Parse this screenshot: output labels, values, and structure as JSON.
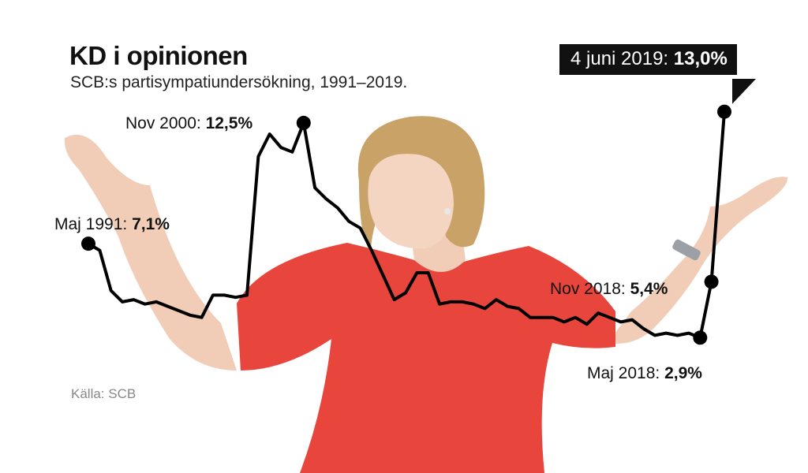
{
  "header": {
    "title": "KD i opinionen",
    "subtitle": "SCB:s partisympatiundersökning, 1991–2019."
  },
  "source": "Källa: SCB",
  "colors": {
    "line": "#000000",
    "callout_bg": "#111111",
    "dress": "#e8453c",
    "skin": "#f1cdb8",
    "hair": "#c9a268"
  },
  "photo": {
    "icon": "woman-red-dress-photo"
  },
  "chart_data": {
    "type": "line",
    "title": "KD i opinionen",
    "subtitle": "SCB:s partisympatiundersökning, 1991–2019.",
    "xlabel": "",
    "ylabel": "",
    "grid": false,
    "legend": "none",
    "xlim": [
      1991.35,
      2019.42
    ],
    "ylim": [
      1.5,
      15.0
    ],
    "series": [
      {
        "x": [
          1991.35,
          1991.85,
          1992.35,
          1992.85,
          1993.35,
          1993.85,
          1994.35,
          1994.85,
          1995.35,
          1995.85,
          1996.35,
          1996.85,
          1997.35,
          1997.85,
          1998.35,
          1998.85,
          1999.35,
          1999.85,
          2000.35,
          2000.85,
          2001.35,
          2001.85,
          2002.35,
          2002.85,
          2003.35,
          2003.85,
          2004.35,
          2004.85,
          2005.35,
          2005.85,
          2006.35,
          2006.85,
          2007.35,
          2007.85,
          2008.35,
          2008.85,
          2009.35,
          2009.85,
          2010.35,
          2010.85,
          2011.35,
          2011.85,
          2012.35,
          2012.85,
          2013.35,
          2013.85,
          2014.35,
          2014.85,
          2015.35,
          2015.85,
          2016.35,
          2016.85,
          2017.35,
          2017.85,
          2018.35,
          2018.85,
          2019.42
        ],
        "y": [
          7.1,
          6.8,
          5.0,
          4.5,
          4.6,
          4.4,
          4.5,
          4.3,
          4.1,
          3.9,
          3.8,
          4.8,
          4.8,
          4.7,
          4.8,
          11.0,
          12.0,
          11.4,
          11.2,
          12.5,
          9.6,
          9.1,
          8.7,
          8.1,
          7.8,
          6.8,
          5.7,
          4.6,
          4.9,
          5.8,
          5.8,
          4.4,
          4.5,
          4.5,
          4.4,
          4.2,
          4.6,
          4.3,
          4.2,
          3.8,
          3.8,
          3.8,
          3.6,
          3.8,
          3.5,
          4.0,
          3.8,
          3.6,
          3.7,
          3.3,
          3.0,
          3.1,
          3.0,
          3.1,
          2.9,
          5.4,
          13.0
        ]
      }
    ],
    "annotations": [
      {
        "key": "a1991",
        "date": "Maj 1991:",
        "value": "7,1%",
        "x": 1991.35,
        "y": 7.1
      },
      {
        "key": "a2000",
        "date": "Nov 2000:",
        "value": "12,5%",
        "x": 2000.85,
        "y": 12.5
      },
      {
        "key": "a2018m",
        "date": "Maj 2018:",
        "value": "2,9%",
        "x": 2018.35,
        "y": 2.9
      },
      {
        "key": "a2018n",
        "date": "Nov 2018:",
        "value": "5,4%",
        "x": 2018.85,
        "y": 5.4
      },
      {
        "key": "a2019",
        "date": "4 juni 2019:",
        "value": "13,0%",
        "x": 2019.42,
        "y": 13.0
      }
    ]
  }
}
